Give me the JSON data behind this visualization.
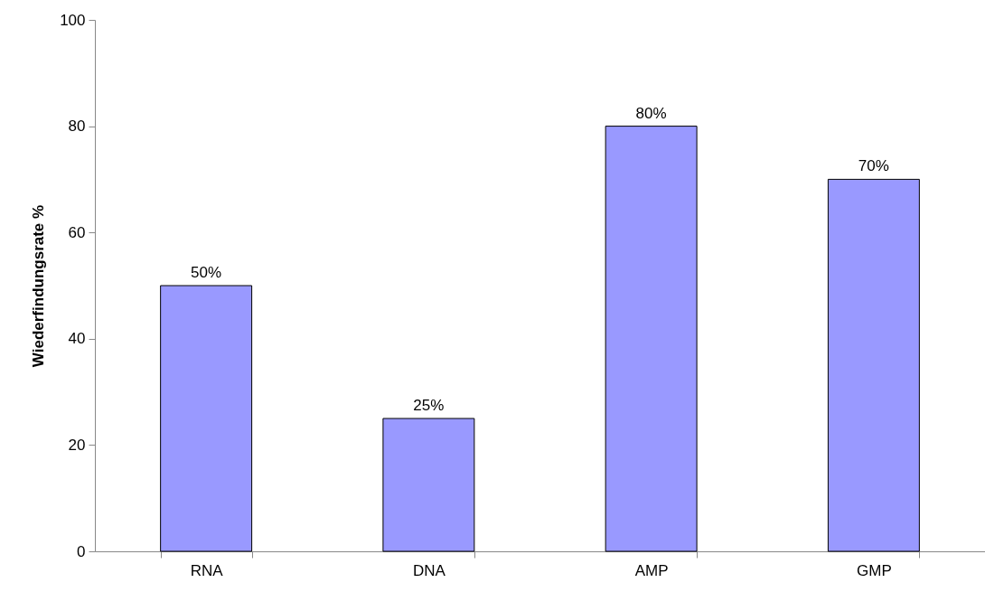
{
  "chart_data": {
    "type": "bar",
    "ylabel": "Wiederfindungsrate %",
    "categories": [
      "RNA",
      "DNA",
      "AMP",
      "GMP"
    ],
    "values": [
      50,
      25,
      80,
      70
    ],
    "value_labels": [
      "50%",
      "25%",
      "80%",
      "70%"
    ],
    "color": "#9999ff",
    "ylim": [
      0,
      100
    ],
    "yticks": [
      0,
      20,
      40,
      60,
      80,
      100
    ],
    "grid": false
  }
}
